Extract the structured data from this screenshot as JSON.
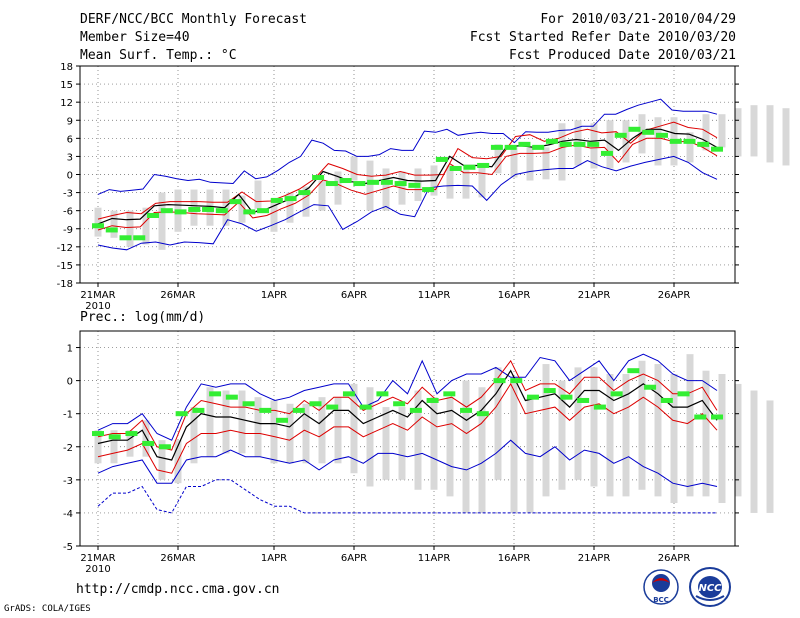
{
  "header": {
    "title": "DERF/NCC/BCC Monthly Forecast",
    "member_size": "Member Size=40",
    "variable": "Mean Surf. Temp.: °C",
    "period": "For 2010/03/21-2010/04/29",
    "start_date": "Fcst Started Refer Date 2010/03/20",
    "produced_date": "Fcst Produced Date 2010/03/21"
  },
  "colors": {
    "envelope": "#0000cc",
    "spread": "#dd0000",
    "mean": "#000000",
    "observed": "#33ee33",
    "box": "#d8d8d8",
    "grid": "#666666"
  },
  "x_ticks": [
    "21MAR",
    "26MAR",
    "1APR",
    "6APR",
    "11APR",
    "16APR",
    "21APR",
    "26APR"
  ],
  "year_label": "2010",
  "chart_data": [
    {
      "type": "line",
      "name": "temperature",
      "ylabel": "Mean Surf. Temp.: °C",
      "ylim": [
        -18,
        18
      ],
      "yticks": [
        -18,
        -15,
        -12,
        -9,
        -6,
        -3,
        0,
        3,
        6,
        9,
        12,
        15,
        18
      ],
      "ytick_labels": [
        "-18",
        "-15",
        "-12",
        "-9",
        "-6",
        "-3",
        "0",
        "3",
        "6",
        "9",
        "12",
        "15",
        "18"
      ],
      "grid": true,
      "days": 40,
      "series": [
        {
          "name": "max",
          "values": [
            -3.3,
            -2.5,
            -2.8,
            -2.6,
            -2.4,
            0,
            -0.3,
            -0.7,
            -1,
            -0.8,
            -1.3,
            -1.4,
            -1.5,
            0.6,
            -0.7,
            -0.4,
            0.7,
            2,
            3,
            5.7,
            5.2,
            4,
            3.9,
            3,
            3,
            3.3,
            4.3,
            4,
            4,
            7.2,
            7,
            7.5,
            6.5,
            6.8,
            7,
            6.8,
            6.8,
            5.3,
            7.1,
            7,
            7,
            7.3,
            7.4,
            8,
            8,
            10,
            10,
            10.8,
            11.5,
            12,
            12.5,
            10.7,
            10.5,
            10.5,
            10.5,
            10
          ]
        },
        {
          "name": "upper",
          "values": [
            -7.4,
            -6.8,
            -6.3,
            -6.5,
            -4.8,
            -4.5,
            -4.5,
            -4.5,
            -4.6,
            -4.6,
            -2.9,
            -4.5,
            -4.4,
            -3.5,
            -2.4,
            -0.8,
            1.8,
            1,
            0,
            -0.3,
            -0.1,
            0.5,
            -0.1,
            -0.1,
            0,
            4.3,
            2.8,
            2.6,
            3,
            6.3,
            6.6,
            5.5,
            6,
            7,
            7.5,
            6.9,
            7.1,
            5.2,
            7.3,
            8,
            8.7,
            7.8,
            7.5,
            6.1
          ]
        },
        {
          "name": "mean",
          "values": [
            -8.2,
            -7.3,
            -7.5,
            -7.4,
            -5.2,
            -5,
            -5.1,
            -5.2,
            -5.3,
            -5.5,
            -3.3,
            -6.3,
            -5.7,
            -4.7,
            -3.7,
            -2.2,
            0.5,
            -0.3,
            -1.2,
            -1.5,
            -1,
            -0.5,
            -1,
            -1.1,
            -1,
            3,
            1.5,
            1.5,
            1.3,
            4.5,
            4.8,
            4.5,
            4.9,
            5.5,
            5.8,
            5.5,
            5.7,
            4,
            6,
            7.5,
            7.5,
            6.8,
            6.7,
            5.8,
            4.5
          ]
        },
        {
          "name": "lower",
          "values": [
            -9.2,
            -8.5,
            -8.8,
            -8.7,
            -6.3,
            -6.2,
            -6.3,
            -6.5,
            -6.6,
            -6.7,
            -4.6,
            -7.2,
            -6.8,
            -5.7,
            -4.8,
            -3.4,
            -0.9,
            -1.6,
            -2.6,
            -3.3,
            -2.6,
            -1.9,
            -2.5,
            -2.5,
            -2.5,
            1.8,
            0.3,
            0.3,
            0,
            3,
            3.5,
            3.5,
            3.6,
            4.5,
            4.9,
            4.4,
            4.5,
            2,
            5,
            6,
            6,
            5.4,
            5.5,
            4.5,
            3.1
          ]
        },
        {
          "name": "min",
          "values": [
            -11.7,
            -12.2,
            -12.5,
            -11.4,
            -11.2,
            -11.7,
            -11.2,
            -11.3,
            -11.5,
            -7.5,
            -8.2,
            -9.4,
            -8.5,
            -7.5,
            -6.2,
            -5,
            -5.2,
            -9.1,
            -7.8,
            -6.2,
            -5.3,
            -6.6,
            -7,
            -2.2,
            -1.9,
            -1.8,
            -1.9,
            -4.3,
            -1.7,
            0,
            0.5,
            0.8,
            1,
            1,
            2.3,
            1.3,
            0.6,
            1.4,
            2,
            2.5,
            3,
            2,
            0.3,
            -0.8
          ]
        }
      ],
      "boxes": {
        "low": [
          -10.3,
          -10.5,
          -12,
          -11.6,
          -12.5,
          -9.5,
          -8.5,
          -8.5,
          -8.5,
          -8,
          -5.7,
          -9.5,
          -8,
          -7,
          -6,
          -5,
          -1,
          -6,
          -6,
          -5,
          -4.4,
          -3.5,
          -4,
          -4,
          -3.8,
          0.2,
          -0.5,
          -1,
          -0.8,
          -1,
          1.5,
          1,
          1,
          2,
          3.5,
          1.5,
          1.5,
          2,
          4,
          4.5,
          3,
          3,
          2,
          1.5
        ],
        "high": [
          -5.5,
          -6,
          -6,
          -5.5,
          -3,
          -2.5,
          -2.5,
          -2.5,
          -2.5,
          -3.5,
          -1,
          -4,
          -3,
          -2,
          -1,
          0.5,
          3,
          2.3,
          1,
          0.5,
          1,
          1.5,
          1.5,
          0.7,
          1.5,
          5,
          4.5,
          4.4,
          4.5,
          8.5,
          9,
          8.5,
          9,
          9,
          10,
          9.5,
          9.5,
          7,
          10,
          10,
          11,
          11.5,
          11.5,
          11
        ]
      },
      "observed": [
        -8.5,
        -9.2,
        -10.5,
        -10.5,
        -6.8,
        -6,
        -6.2,
        -5.8,
        -5.8,
        -6,
        -4.5,
        -6.2,
        -6,
        -4.3,
        -4,
        -3,
        -0.5,
        -1.5,
        -1,
        -1.5,
        -1.3,
        -1.3,
        -1.5,
        -1.8,
        -2.5,
        2.5,
        1,
        1.2,
        1.5,
        4.5,
        4.5,
        5,
        4.5,
        5.5,
        5,
        5,
        5,
        3.5,
        6.5,
        7.5,
        7,
        6.5,
        5.5,
        5.5,
        5,
        4.2
      ]
    },
    {
      "type": "line",
      "name": "precipitation",
      "ylabel": "Prec.: log(mm/d)",
      "ylim": [
        -5,
        1.5
      ],
      "yticks": [
        -5,
        -4,
        -3,
        -2,
        -1,
        0,
        1
      ],
      "ytick_labels": [
        "-5",
        "-4",
        "-3",
        "-2",
        "-1",
        "0",
        "1"
      ],
      "grid": true,
      "days": 40,
      "series": [
        {
          "name": "max",
          "values": [
            -1.5,
            -1.3,
            -1.3,
            -1,
            -1.6,
            -1.8,
            -0.8,
            -0.1,
            -0.2,
            -0.1,
            -0.1,
            -0.4,
            -0.6,
            -0.5,
            -0.3,
            -0.2,
            -0.1,
            -0.1,
            -0.8,
            -0.6,
            0,
            -0.4,
            0.6,
            -0.4,
            0,
            0.2,
            0.2,
            0.4,
            0.1,
            0.1,
            0.7,
            0.6,
            0,
            0.3,
            0.6,
            0,
            0.6,
            0.8,
            0.6,
            0.2,
            0,
            0,
            -0.3
          ]
        },
        {
          "name": "upper",
          "values": [
            -1.7,
            -1.6,
            -1.6,
            -1.2,
            -2,
            -2.1,
            -1,
            -0.6,
            -0.7,
            -0.8,
            -0.8,
            -0.9,
            -0.9,
            -1,
            -0.6,
            -0.9,
            -0.5,
            -0.5,
            -0.9,
            -0.7,
            -0.5,
            -0.7,
            -0.2,
            -0.6,
            -0.5,
            -0.8,
            -0.5,
            0,
            0.6,
            -0.3,
            -0.1,
            -0.1,
            -0.4,
            0.1,
            0.1,
            -0.3,
            0,
            0.2,
            0,
            -0.4,
            -0.4,
            -0.2,
            -0.9
          ]
        },
        {
          "name": "mean",
          "values": [
            -1.9,
            -1.8,
            -1.8,
            -1.5,
            -2.3,
            -2.4,
            -1.4,
            -1,
            -1.1,
            -1.1,
            -1.2,
            -1.3,
            -1.3,
            -1.4,
            -1,
            -1.3,
            -0.9,
            -0.9,
            -1.3,
            -1.1,
            -0.9,
            -1.1,
            -0.6,
            -1,
            -0.9,
            -1.2,
            -0.9,
            -0.4,
            0.3,
            -0.6,
            -0.5,
            -0.4,
            -0.8,
            -0.3,
            -0.3,
            -0.6,
            -0.4,
            -0.1,
            -0.4,
            -0.8,
            -0.8,
            -0.6,
            -1.2
          ]
        },
        {
          "name": "lower",
          "values": [
            -2.3,
            -2.2,
            -2.1,
            -1.9,
            -2.7,
            -2.8,
            -1.9,
            -1.6,
            -1.6,
            -1.5,
            -1.6,
            -1.6,
            -1.7,
            -1.8,
            -1.5,
            -1.7,
            -1.4,
            -1.4,
            -1.7,
            -1.5,
            -1.3,
            -1.5,
            -1.1,
            -1.4,
            -1.3,
            -1.6,
            -1.3,
            -0.8,
            -0.1,
            -1,
            -0.9,
            -0.8,
            -1.2,
            -0.8,
            -0.7,
            -1,
            -0.8,
            -0.5,
            -0.8,
            -1.2,
            -1.3,
            -1,
            -1.5
          ]
        },
        {
          "name": "min",
          "values": [
            -2.8,
            -2.6,
            -2.5,
            -2.4,
            -3.1,
            -3.1,
            -2.4,
            -2.3,
            -2.3,
            -2.1,
            -2.3,
            -2.3,
            -2.4,
            -2.5,
            -2.4,
            -2.7,
            -2.4,
            -2.3,
            -2.5,
            -2.2,
            -2.2,
            -2.3,
            -2.2,
            -2.4,
            -2.6,
            -2.7,
            -2.5,
            -2.2,
            -1.8,
            -2.2,
            -2.3,
            -2,
            -2.4,
            -2.1,
            -2.2,
            -2.5,
            -2.3,
            -2.6,
            -2.8,
            -3.1,
            -3.2,
            -3.1,
            -3.2
          ]
        },
        {
          "name": "floor",
          "values": [
            -3.8,
            -3.4,
            -3.4,
            -3.2,
            -3.9,
            -4,
            -3.2,
            -3.2,
            -3,
            -3,
            -3.3,
            -3.6,
            -3.8,
            -3.8,
            -4,
            -4,
            -4,
            -4,
            -4,
            -4,
            -4,
            -4,
            -4,
            -4,
            -4,
            -4,
            -4,
            -4,
            -4,
            -4,
            -4,
            -4,
            -4,
            -4,
            -4,
            -4,
            -4,
            -4,
            -4,
            -4,
            -4,
            -4,
            -4
          ]
        }
      ],
      "boxes": {
        "low": [
          -2.5,
          -2.5,
          -2.3,
          -2.3,
          -3,
          -3.1,
          -2.5,
          -2.3,
          -2.2,
          -2.2,
          -2.3,
          -2.5,
          -2.5,
          -2.5,
          -2.5,
          -2.5,
          -2.8,
          -3.2,
          -3,
          -3,
          -3.3,
          -3.3,
          -3.5,
          -4,
          -4,
          -3,
          -4,
          -4,
          -3.5,
          -3.3,
          -3,
          -3.2,
          -3.5,
          -3.5,
          -3.3,
          -3.5,
          -3.7,
          -3.5,
          -3.5,
          -3.7,
          -3.5,
          -4,
          -4
        ],
        "high": [
          -1.5,
          -1.5,
          -1.5,
          -1.2,
          -1.8,
          -1.8,
          -0.8,
          -0.2,
          -0.3,
          -0.3,
          -0.5,
          -0.6,
          -0.7,
          -0.7,
          -0.5,
          -0.5,
          -0.1,
          -0.2,
          -0.8,
          -0.8,
          -0.3,
          -0.5,
          -0.5,
          0,
          -0.2,
          0.4,
          0,
          -0.5,
          0.5,
          0,
          0.4,
          0.4,
          0.2,
          0.2,
          0.6,
          0.5,
          0.2,
          0.8,
          0.3,
          0.2,
          -0.1,
          -0.3,
          -0.6
        ]
      },
      "observed": [
        -1.6,
        -1.7,
        -1.6,
        -1.9,
        -2,
        -1,
        -0.9,
        -0.4,
        -0.5,
        -0.7,
        -0.9,
        -1.2,
        -0.9,
        -0.7,
        -0.8,
        -0.4,
        -0.8,
        -0.4,
        -0.7,
        -0.9,
        -0.6,
        -0.4,
        -0.9,
        -1,
        0,
        0,
        -0.5,
        -0.3,
        -0.5,
        -0.6,
        -0.8,
        -0.4,
        0.3,
        -0.2,
        -0.6,
        -0.4,
        -1.1,
        -1.1
      ]
    }
  ],
  "footer": {
    "url": "http://cmdp.ncc.cma.gov.cn",
    "credit": "GrADS: COLA/IGES",
    "logo_bcc": "BCC",
    "logo_ncc": "NCC"
  }
}
